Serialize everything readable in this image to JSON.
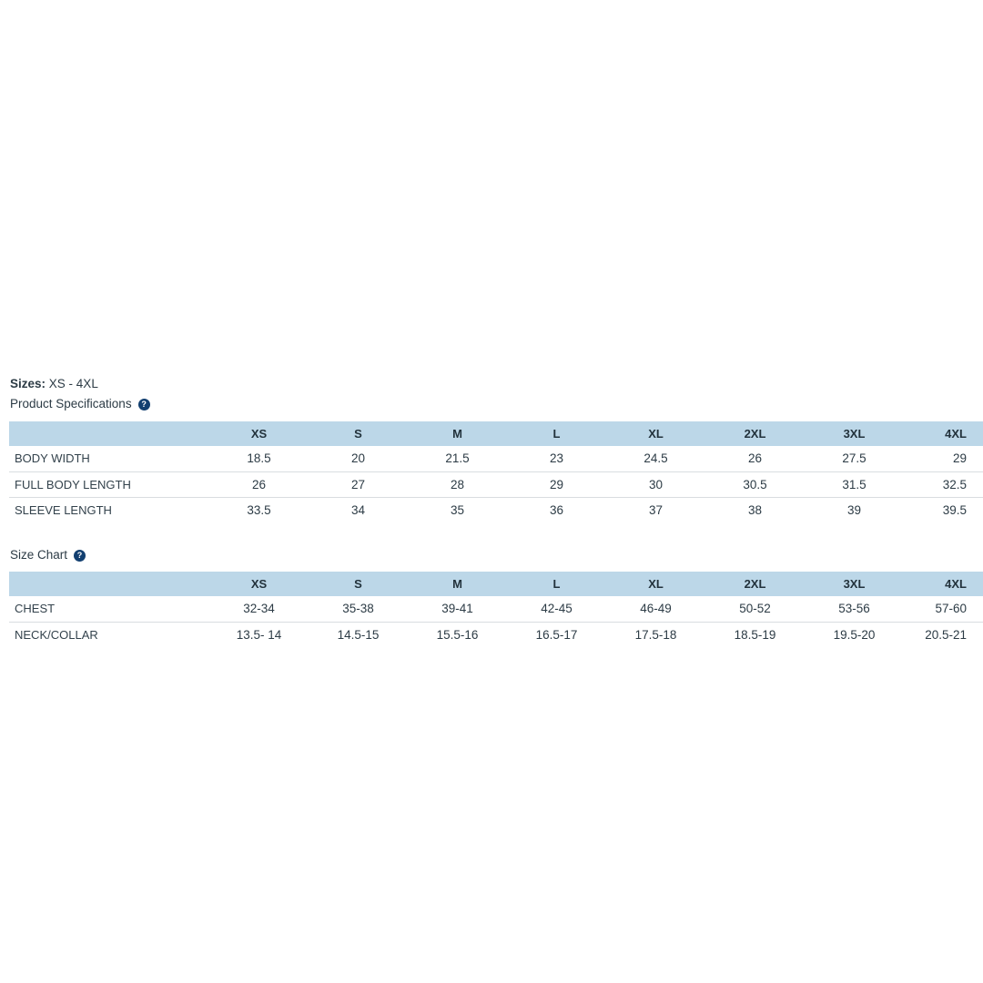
{
  "colors": {
    "table_header_background": "#bcd7e8",
    "text": "#2c3b45",
    "row_border": "#d9dde0",
    "help_icon_background": "#123f70"
  },
  "sizes": {
    "label": "Sizes:",
    "value": "XS - 4XL"
  },
  "help_icon_glyph": "?",
  "product_specifications": {
    "title": "Product Specifications",
    "columns": [
      "",
      "XS",
      "S",
      "M",
      "L",
      "XL",
      "2XL",
      "3XL",
      "4XL"
    ],
    "rows": [
      {
        "label": "BODY WIDTH",
        "values": [
          "18.5",
          "20",
          "21.5",
          "23",
          "24.5",
          "26",
          "27.5",
          "29"
        ]
      },
      {
        "label": "FULL BODY LENGTH",
        "values": [
          "26",
          "27",
          "28",
          "29",
          "30",
          "30.5",
          "31.5",
          "32.5"
        ]
      },
      {
        "label": "SLEEVE LENGTH",
        "values": [
          "33.5",
          "34",
          "35",
          "36",
          "37",
          "38",
          "39",
          "39.5"
        ]
      }
    ]
  },
  "size_chart": {
    "title": "Size Chart",
    "columns": [
      "",
      "XS",
      "S",
      "M",
      "L",
      "XL",
      "2XL",
      "3XL",
      "4XL"
    ],
    "rows": [
      {
        "label": "CHEST",
        "values": [
          "32-34",
          "35-38",
          "39-41",
          "42-45",
          "46-49",
          "50-52",
          "53-56",
          "57-60"
        ]
      },
      {
        "label": "NECK/COLLAR",
        "values": [
          "13.5- 14",
          "14.5-15",
          "15.5-16",
          "16.5-17",
          "17.5-18",
          "18.5-19",
          "19.5-20",
          "20.5-21"
        ]
      }
    ]
  }
}
